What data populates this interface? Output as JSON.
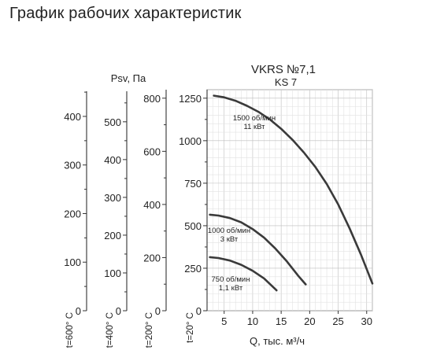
{
  "page": {
    "heading": "График рабочих характеристик"
  },
  "chart_data": {
    "type": "line",
    "title": "VKRS №7,1",
    "subtitle": "KS 7",
    "xlabel": "Q, тыс. м³/ч",
    "ylabel": "Psv, Па",
    "xlim": [
      2,
      31
    ],
    "x_ticks": [
      5,
      10,
      15,
      20,
      25,
      30
    ],
    "grid": true,
    "y_axes": [
      {
        "id": "t20",
        "label": "t=20° C",
        "ylim": [
          0,
          1300
        ],
        "ticks": [
          0,
          250,
          500,
          750,
          1000,
          1250
        ]
      },
      {
        "id": "t200",
        "label": "t=200° C",
        "ylim": [
          0,
          832
        ],
        "ticks": [
          0,
          200,
          400,
          600,
          800
        ]
      },
      {
        "id": "t400",
        "label": "t=400° C",
        "ylim": [
          0,
          585
        ],
        "ticks": [
          0,
          100,
          200,
          300,
          400,
          500
        ]
      },
      {
        "id": "t600",
        "label": "t=600° C",
        "ylim": [
          0,
          455
        ],
        "ticks": [
          0,
          100,
          200,
          300,
          400
        ]
      }
    ],
    "series": [
      {
        "name": "1500 об/мин 11 кВт",
        "label_lines": [
          "1500 об/мин",
          "11 кВт"
        ],
        "x": [
          3.2,
          5,
          7,
          9,
          11,
          13,
          15,
          17,
          19,
          21,
          23,
          25,
          27,
          29,
          31
        ],
        "y": [
          1265,
          1255,
          1235,
          1205,
          1170,
          1125,
          1070,
          1005,
          930,
          845,
          745,
          625,
          485,
          330,
          160
        ]
      },
      {
        "name": "1000 об/мин 3 кВт",
        "label_lines": [
          "1000 об/мин",
          "3 кВт"
        ],
        "x": [
          2.5,
          4,
          6,
          8,
          10,
          12,
          14,
          16,
          18,
          19.3
        ],
        "y": [
          565,
          560,
          545,
          520,
          480,
          430,
          365,
          290,
          205,
          155
        ]
      },
      {
        "name": "750 об/мин 1,1 кВт",
        "label_lines": [
          "750 об/мин",
          "1,1 кВт"
        ],
        "x": [
          2.5,
          4,
          6,
          8,
          10,
          12,
          14.2
        ],
        "y": [
          315,
          310,
          295,
          270,
          235,
          190,
          120
        ]
      }
    ]
  }
}
